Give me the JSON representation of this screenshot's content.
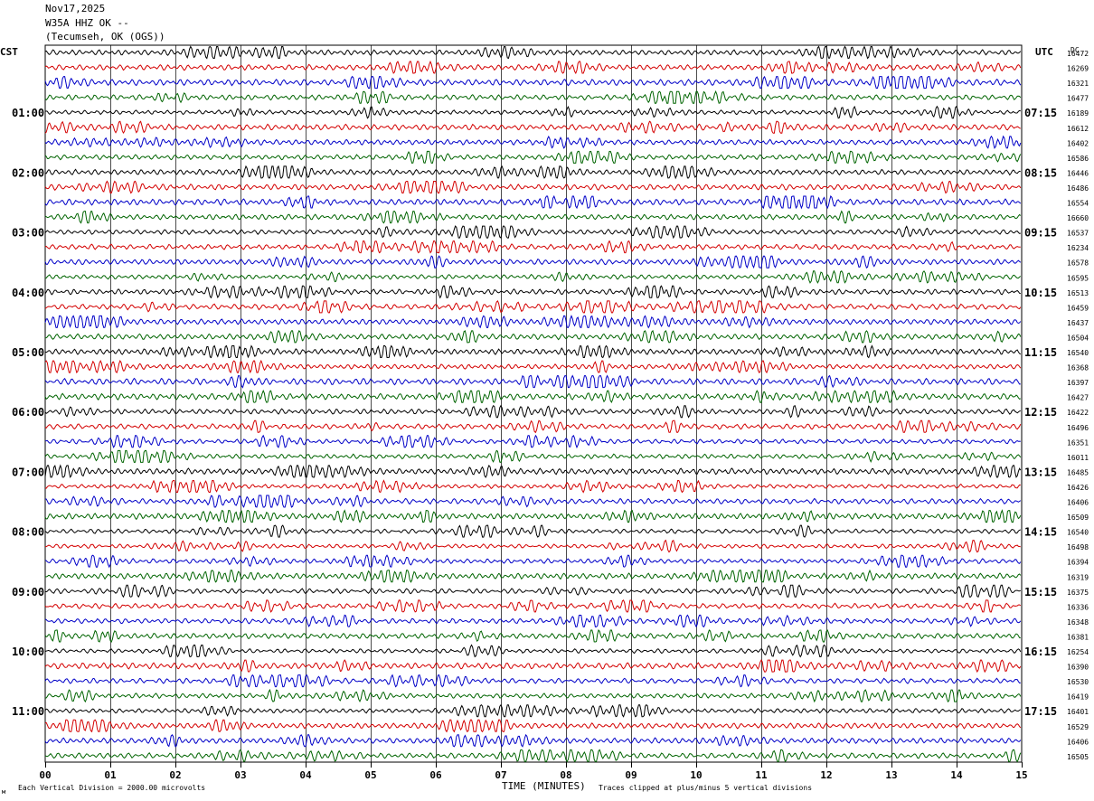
{
  "header": {
    "date": "Nov17,2025",
    "station": "W35A HHZ OK --",
    "location": "(Tecumseh, OK (OGS))"
  },
  "left_axis_label": "CST",
  "right_axis_label": "UTC",
  "dc_label": "DC",
  "footer": {
    "scale_note": "Each Vertical Division = 2000.00 microvolts",
    "x_axis_title": "TIME (MINUTES)",
    "clip_note": "Traces clipped at plus/minus 5 vertical divisions"
  },
  "colors": {
    "trace_cycle": [
      "#000000",
      "#d40000",
      "#0000c8",
      "#006400"
    ],
    "grid": "#000000"
  },
  "chart_data": {
    "type": "line",
    "title": "",
    "xlabel": "TIME (MINUTES)",
    "x_ticks": [
      "00",
      "01",
      "02",
      "03",
      "04",
      "05",
      "06",
      "07",
      "08",
      "09",
      "10",
      "11",
      "12",
      "13",
      "14",
      "15"
    ],
    "xlim": [
      0,
      15
    ],
    "grid": true,
    "trace_count": 48,
    "minutes_per_trace": 15,
    "left_hour_labels": [
      "01:00",
      "02:00",
      "03:00",
      "04:00",
      "05:00",
      "06:00",
      "07:00",
      "08:00",
      "09:00",
      "10:00",
      "11:00"
    ],
    "right_hour_labels": [
      "07:15",
      "08:15",
      "09:15",
      "10:15",
      "11:15",
      "12:15",
      "13:15",
      "14:15",
      "15:15",
      "16:15",
      "17:15"
    ],
    "dc_offsets": [
      16472,
      16269,
      16321,
      16477,
      16189,
      16612,
      16402,
      16586,
      16446,
      16486,
      16554,
      16660,
      16537,
      16234,
      16578,
      16595,
      16513,
      16459,
      16437,
      16504,
      16540,
      16368,
      16397,
      16427,
      16422,
      16496,
      16351,
      16011,
      16485,
      16426,
      16406,
      16509,
      16540,
      16498,
      16394,
      16319,
      16375,
      16336,
      16348,
      16381,
      16254,
      16390,
      16530,
      16419,
      16401,
      16529,
      16406,
      16505
    ]
  }
}
